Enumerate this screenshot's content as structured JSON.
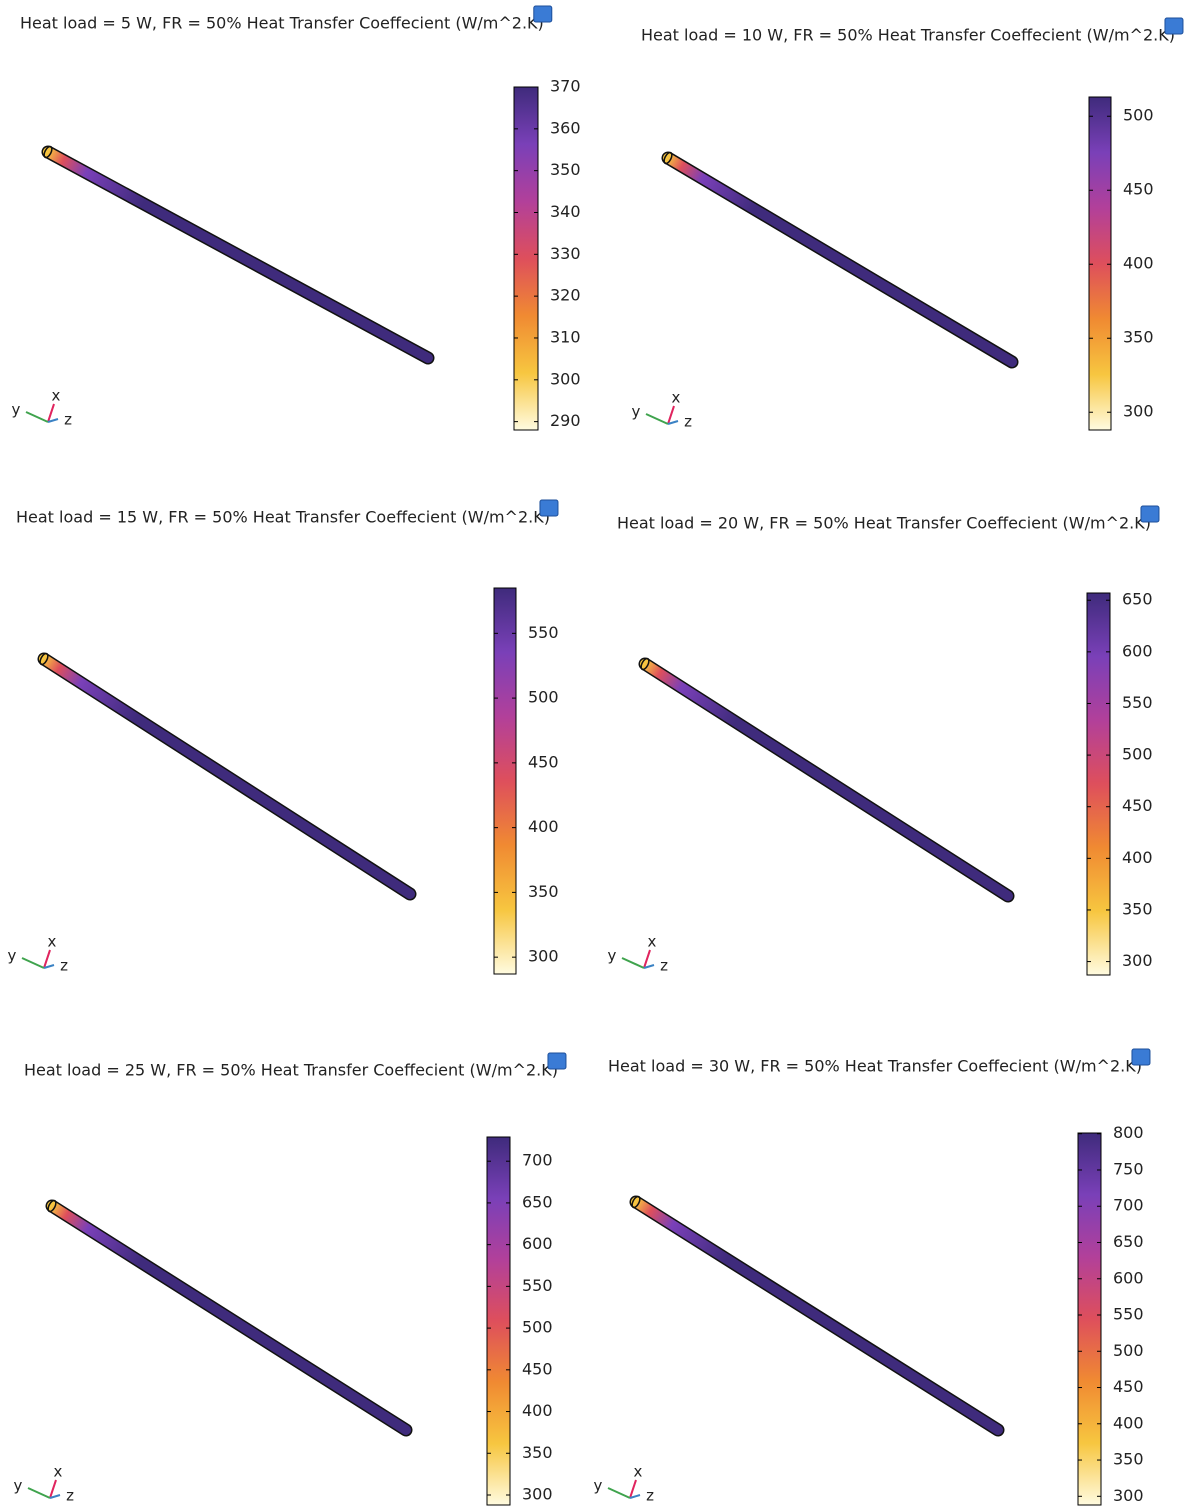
{
  "chart_data": [
    {
      "type": "surface",
      "title": "Heat load = 5 W, FR = 50%  Heat Transfer Coeffecient (W/m^2.K)",
      "clim": [
        288,
        370
      ],
      "cticks": [
        290,
        300,
        310,
        320,
        330,
        340,
        350,
        360,
        370
      ],
      "colormap": [
        "#fffbe0",
        "#f7c640",
        "#f08a32",
        "#de4f5c",
        "#b2409a",
        "#7a40b8",
        "#3f2b7c"
      ],
      "triad_labels": [
        "x",
        "y",
        "z"
      ]
    },
    {
      "type": "surface",
      "title": "Heat load = 10 W, FR = 50%  Heat Transfer Coeffecient (W/m^2.K)",
      "clim": [
        288,
        513
      ],
      "cticks": [
        300,
        350,
        400,
        450,
        500
      ],
      "colormap": [
        "#fffbe0",
        "#f7c640",
        "#f08a32",
        "#de4f5c",
        "#b2409a",
        "#7a40b8",
        "#3f2b7c"
      ],
      "triad_labels": [
        "x",
        "y",
        "z"
      ]
    },
    {
      "type": "surface",
      "title": "Heat load = 15 W, FR = 50%  Heat Transfer Coeffecient (W/m^2.K)",
      "clim": [
        287,
        585
      ],
      "cticks": [
        300,
        350,
        400,
        450,
        500,
        550
      ],
      "colormap": [
        "#fffbe0",
        "#f7c640",
        "#f08a32",
        "#de4f5c",
        "#b2409a",
        "#7a40b8",
        "#3f2b7c"
      ],
      "triad_labels": [
        "x",
        "y",
        "z"
      ]
    },
    {
      "type": "surface",
      "title": "Heat load = 20 W, FR = 50%  Heat Transfer Coeffecient (W/m^2.K)",
      "clim": [
        287,
        657
      ],
      "cticks": [
        300,
        350,
        400,
        450,
        500,
        550,
        600,
        650
      ],
      "colormap": [
        "#fffbe0",
        "#f7c640",
        "#f08a32",
        "#de4f5c",
        "#b2409a",
        "#7a40b8",
        "#3f2b7c"
      ],
      "triad_labels": [
        "x",
        "y",
        "z"
      ]
    },
    {
      "type": "surface",
      "title": "Heat load = 25 W, FR = 50%  Heat Transfer Coeffecient (W/m^2.K)",
      "clim": [
        288,
        729
      ],
      "cticks": [
        300,
        350,
        400,
        450,
        500,
        550,
        600,
        650,
        700
      ],
      "colormap": [
        "#fffbe0",
        "#f7c640",
        "#f08a32",
        "#de4f5c",
        "#b2409a",
        "#7a40b8",
        "#3f2b7c"
      ],
      "triad_labels": [
        "x",
        "y",
        "z"
      ]
    },
    {
      "type": "surface",
      "title": "Heat load = 30 W, FR = 50%  Heat Transfer Coeffecient (W/m^2.K)",
      "clim": [
        288,
        801
      ],
      "cticks": [
        300,
        350,
        400,
        450,
        500,
        550,
        600,
        650,
        700,
        750,
        800
      ],
      "colormap": [
        "#fffbe0",
        "#f7c640",
        "#f08a32",
        "#de4f5c",
        "#b2409a",
        "#7a40b8",
        "#3f2b7c"
      ],
      "triad_labels": [
        "x",
        "y",
        "z"
      ]
    }
  ]
}
